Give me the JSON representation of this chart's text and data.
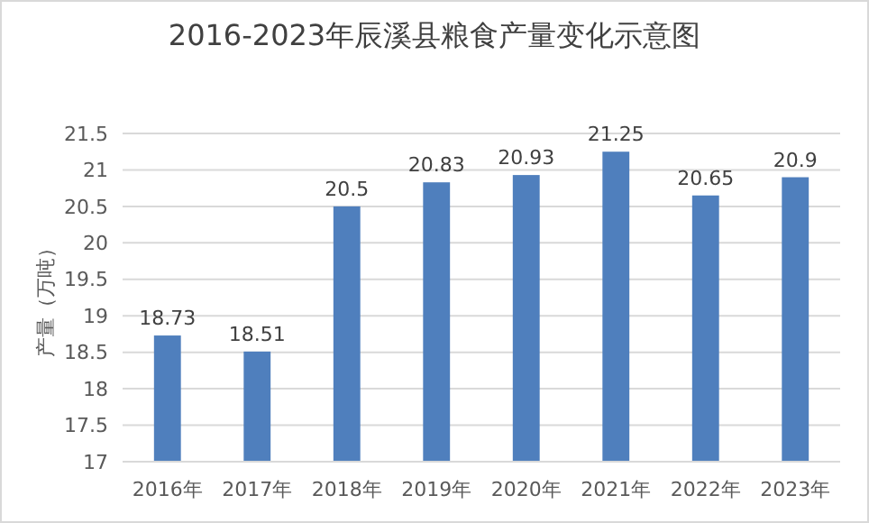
{
  "chart_data": {
    "type": "bar",
    "title": "2016-2023年辰溪县粮食产量变化示意图",
    "ylabel": "产量（万吨）",
    "categories": [
      "2016年",
      "2017年",
      "2018年",
      "2019年",
      "2020年",
      "2021年",
      "2022年",
      "2023年"
    ],
    "values": [
      18.73,
      18.51,
      20.5,
      20.83,
      20.93,
      21.25,
      20.65,
      20.9
    ],
    "color": "#4f7fbd",
    "ylim": [
      17,
      21.5
    ],
    "yticks": [
      17,
      17.5,
      18,
      18.5,
      19,
      19.5,
      20,
      20.5,
      21,
      21.5
    ],
    "grid": "y",
    "data_labels": true
  }
}
